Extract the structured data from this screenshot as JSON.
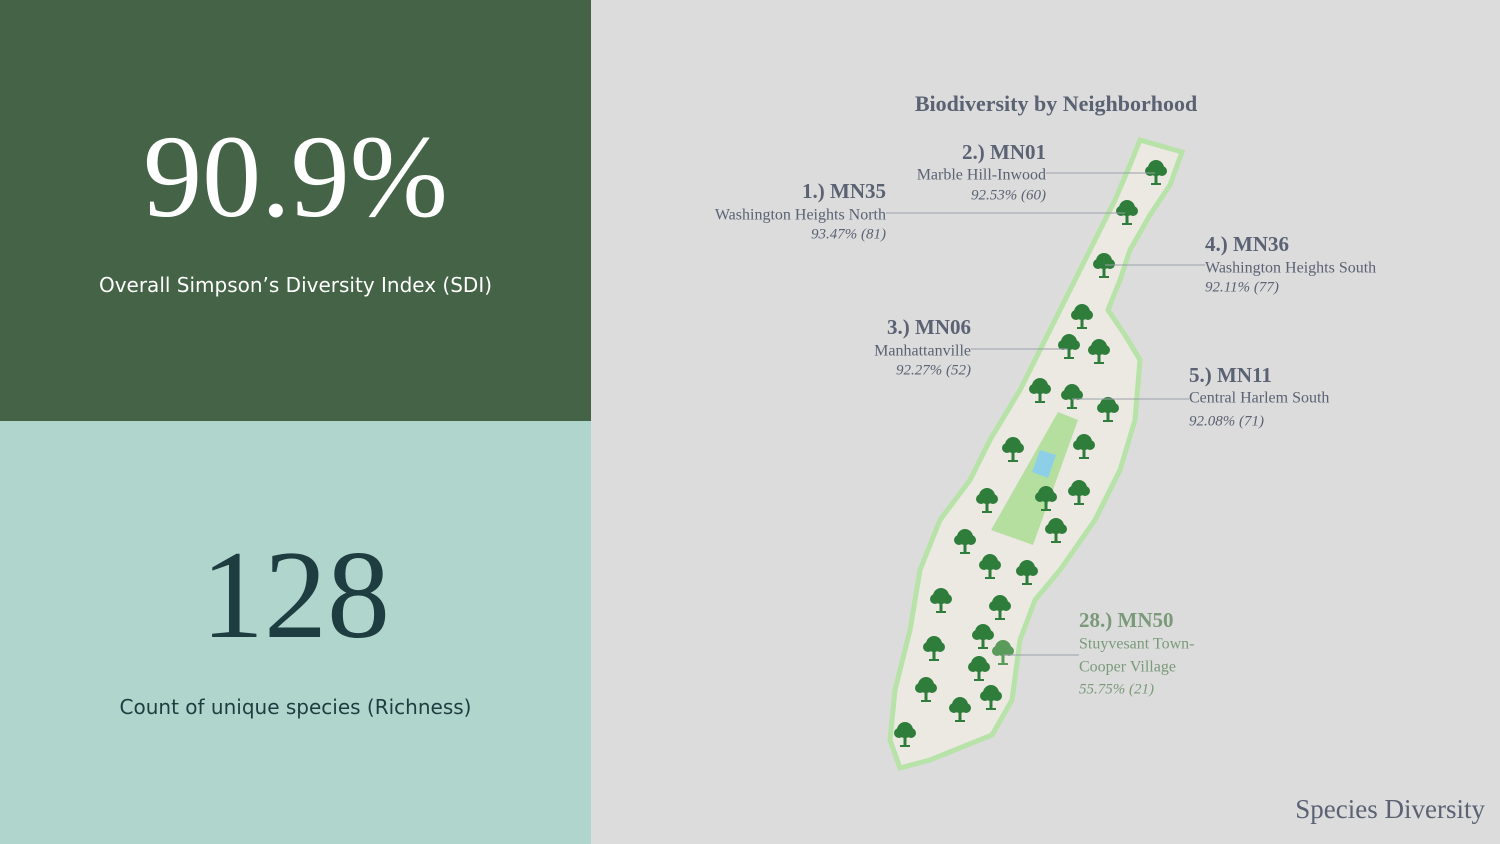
{
  "kpis": [
    {
      "value": "90.9%",
      "label": "Overall Simpson’s Diversity Index (SDI)"
    },
    {
      "value": "128",
      "label": "Count of unique species (Richness)"
    }
  ],
  "map": {
    "title": "Biodiversity by Neighborhood",
    "annotations": [
      {
        "rank": "1.) MN35",
        "name": [
          "Washington Heights North"
        ],
        "stat": "93.47% (81)"
      },
      {
        "rank": "2.) MN01",
        "name": [
          "Marble Hill-Inwood"
        ],
        "stat": "92.53% (60)"
      },
      {
        "rank": "3.) MN06",
        "name": [
          "Manhattanville"
        ],
        "stat": "92.27% (52)"
      },
      {
        "rank": "4.) MN36",
        "name": [
          "Washington Heights South"
        ],
        "stat": "92.11% (77)"
      },
      {
        "rank": "5.) MN11",
        "name": [
          "Central Harlem South"
        ],
        "stat": "92.08% (71)"
      },
      {
        "rank": "28.) MN50",
        "name": [
          "Stuyvesant Town-",
          "Cooper Village"
        ],
        "stat": "55.75% (21)"
      }
    ]
  },
  "footer": "Species Diversity"
}
